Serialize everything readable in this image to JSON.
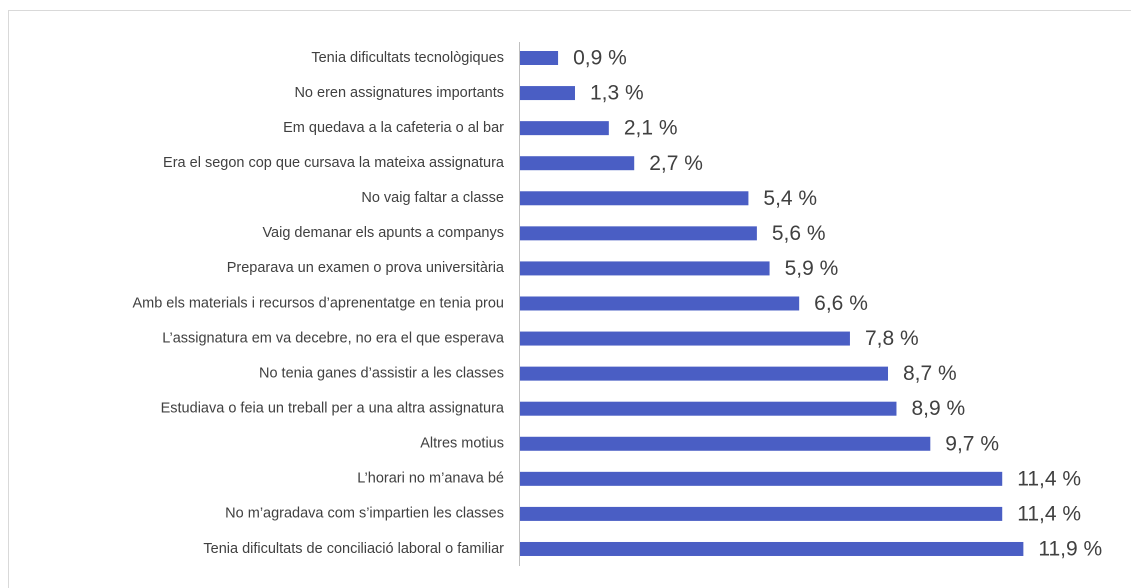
{
  "chart_data": {
    "type": "bar",
    "orientation": "horizontal",
    "categories": [
      "Tenia dificultats tecnològiques",
      "No eren assignatures importants",
      "Em quedava a la cafeteria o al bar",
      "Era el segon cop que cursava la mateixa assignatura",
      "No vaig faltar a classe",
      "Vaig demanar els apunts a companys",
      "Preparava un examen o prova universitària",
      "Amb els materials i recursos d’aprenentatge en tenia prou",
      "L’assignatura em va decebre, no era el que esperava",
      "No tenia ganes d’assistir a les classes",
      "Estudiava o feia un treball per a una altra assignatura",
      "Altres motius",
      "L’horari no m’anava bé",
      "No m’agradava com s’impartien les classes",
      "Tenia dificultats de conciliació laboral o familiar"
    ],
    "values": [
      0.9,
      1.3,
      2.1,
      2.7,
      5.4,
      5.6,
      5.9,
      6.6,
      7.8,
      8.7,
      8.9,
      9.7,
      11.4,
      11.4,
      11.9
    ],
    "value_labels": [
      "0,9 %",
      "1,3 %",
      "2,1 %",
      "2,7 %",
      "5,4 %",
      "5,6 %",
      "5,9 %",
      "6,6 %",
      "7,8 %",
      "8,7 %",
      "8,9 %",
      "9,7 %",
      "11,4 %",
      "11,4 %",
      "11,9 %"
    ],
    "color": "#4a5ec4"
  }
}
